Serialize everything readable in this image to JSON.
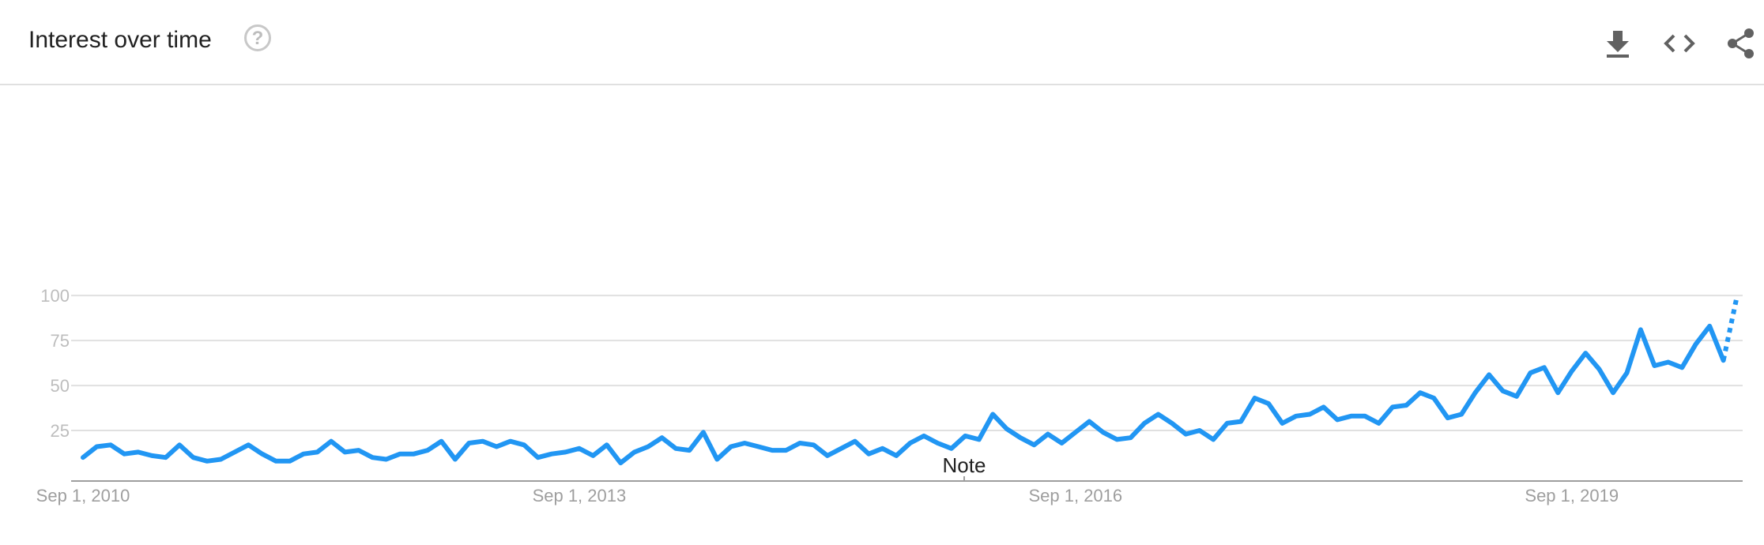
{
  "header": {
    "title": "Interest over time",
    "help_glyph": "?",
    "icons": [
      "help-icon",
      "download-icon",
      "embed-icon",
      "share-icon"
    ]
  },
  "colors": {
    "series": "#2196f3",
    "grid": "#e0e0e0",
    "axis": "#9e9e9e",
    "tick_text": "#bdbdbd"
  },
  "chart_data": {
    "type": "line",
    "title": "",
    "xlabel": "",
    "ylabel": "",
    "ylim": [
      0,
      100
    ],
    "yticks": [
      25,
      50,
      75,
      100
    ],
    "grid": true,
    "x_tick_labels": [
      "Sep 1, 2010",
      "Sep 1, 2013",
      "Sep 1, 2016",
      "Sep 1, 2019"
    ],
    "annotation": "Note",
    "series": [
      {
        "x_start": "2010-09",
        "interval": "month",
        "values": [
          10,
          16,
          17,
          12,
          13,
          11,
          10,
          17,
          10,
          8,
          9,
          13,
          17,
          12,
          8,
          8,
          12,
          13,
          19,
          13,
          14,
          10,
          9,
          12,
          12,
          14,
          19,
          9,
          18,
          19,
          16,
          19,
          17,
          10,
          12,
          13,
          15,
          11,
          17,
          7,
          13,
          16,
          21,
          15,
          14,
          24,
          9,
          16,
          18,
          16,
          14,
          14,
          18,
          17,
          11,
          15,
          19,
          12,
          15,
          11,
          18,
          22,
          18,
          15,
          22,
          20,
          34,
          26,
          21,
          17,
          23,
          18,
          24,
          30,
          24,
          20,
          21,
          29,
          34,
          29,
          23,
          25,
          20,
          29,
          30,
          43,
          40,
          29,
          33,
          34,
          38,
          31,
          33,
          33,
          29,
          38,
          39,
          46,
          43,
          32,
          34,
          46,
          56,
          47,
          44,
          57,
          60,
          46,
          58,
          68,
          59,
          46,
          57,
          81,
          61,
          63,
          60,
          73,
          83,
          64
        ],
        "partial_segment": {
          "from_x": "2020-08",
          "to_x": "2020-09",
          "values": [
            64,
            100
          ]
        }
      }
    ]
  }
}
